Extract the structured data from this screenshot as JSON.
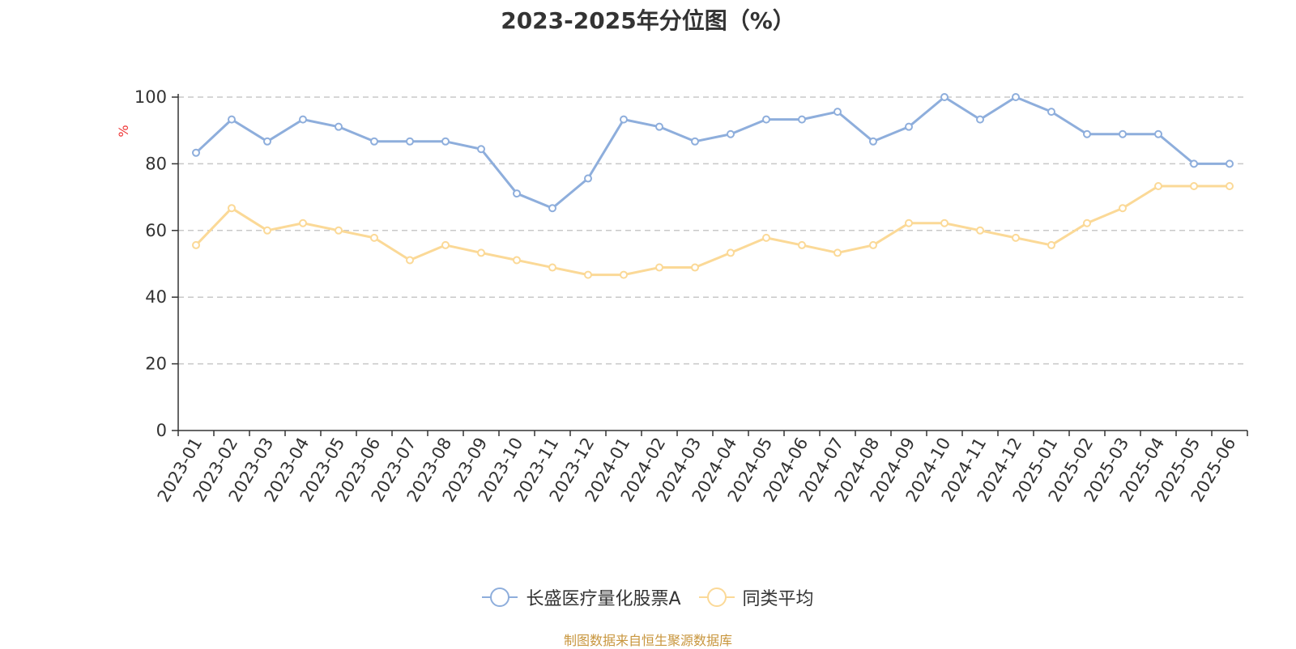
{
  "chart_data": {
    "type": "line",
    "title": "2023-2025年分位图（%）",
    "ylabel": "%",
    "ylim": [
      0,
      100
    ],
    "yticks": [
      0,
      20,
      40,
      60,
      80,
      100
    ],
    "grid": true,
    "legend_position": "bottom",
    "categories": [
      "2023-01",
      "2023-02",
      "2023-03",
      "2023-04",
      "2023-05",
      "2023-06",
      "2023-07",
      "2023-08",
      "2023-09",
      "2023-10",
      "2023-11",
      "2023-12",
      "2024-01",
      "2024-02",
      "2024-03",
      "2024-04",
      "2024-05",
      "2024-06",
      "2024-07",
      "2024-08",
      "2024-09",
      "2024-10",
      "2024-11",
      "2024-12",
      "2025-01",
      "2025-02",
      "2025-03",
      "2025-04",
      "2025-05",
      "2025-06"
    ],
    "series": [
      {
        "name": "长盛医疗量化股票A",
        "color": "#8eaedc",
        "values": [
          83.3,
          93.3,
          86.7,
          93.3,
          91.1,
          86.7,
          86.7,
          86.7,
          84.4,
          71.1,
          66.7,
          75.6,
          93.3,
          91.1,
          86.7,
          88.9,
          93.3,
          93.3,
          95.6,
          86.7,
          91.1,
          100,
          93.3,
          100,
          95.6,
          88.9,
          88.9,
          88.9,
          80.0,
          80.0
        ]
      },
      {
        "name": "同类平均",
        "color": "#fbd997",
        "values": [
          55.6,
          66.7,
          60.0,
          62.2,
          60.0,
          57.8,
          51.1,
          55.6,
          53.3,
          51.1,
          48.9,
          46.7,
          46.7,
          48.9,
          48.9,
          53.3,
          57.8,
          55.6,
          53.3,
          55.6,
          62.2,
          62.2,
          60.0,
          57.8,
          55.6,
          62.2,
          66.7,
          73.3,
          73.3,
          73.3
        ]
      }
    ]
  },
  "footer": "制图数据来自恒生聚源数据库"
}
